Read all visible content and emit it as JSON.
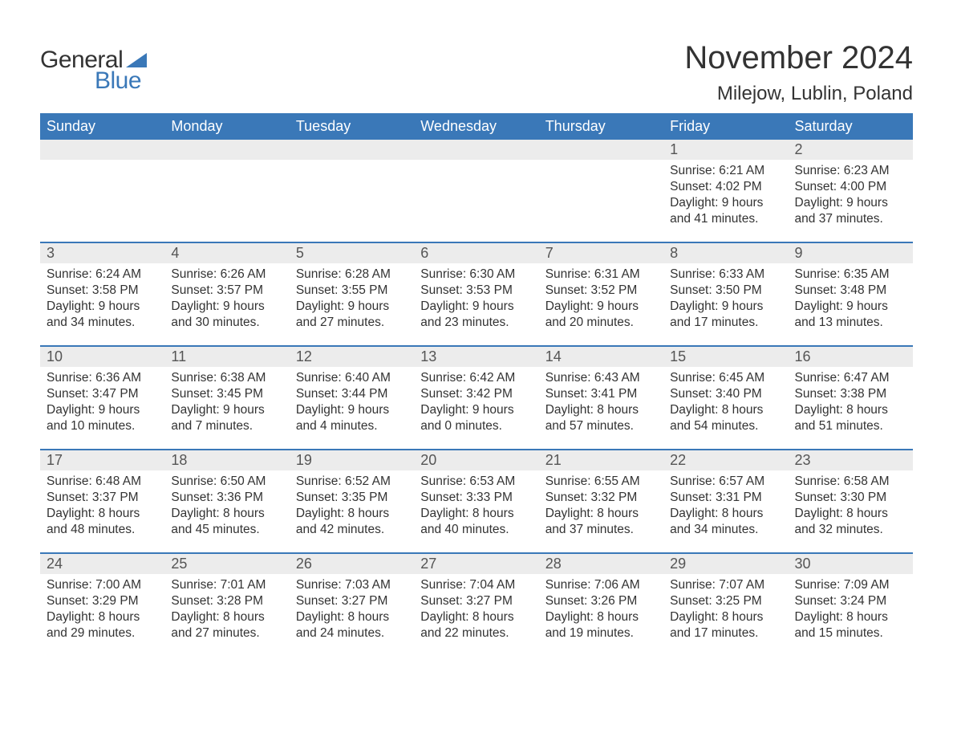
{
  "logo": {
    "text_general": "General",
    "text_blue": "Blue",
    "general_color": "#333333",
    "blue_color": "#3a78b8",
    "sail_color": "#3a78b8"
  },
  "header": {
    "title": "November 2024",
    "location": "Milejow, Lublin, Poland",
    "title_fontsize": 40,
    "location_fontsize": 24,
    "text_color": "#333333"
  },
  "calendar": {
    "type": "table",
    "header_bg": "#3a78b8",
    "header_text_color": "#ffffff",
    "daynum_bg": "#ececec",
    "row_separator_color": "#3a78b8",
    "body_text_color": "#333333",
    "columns": [
      "Sunday",
      "Monday",
      "Tuesday",
      "Wednesday",
      "Thursday",
      "Friday",
      "Saturday"
    ],
    "weeks": [
      [
        null,
        null,
        null,
        null,
        null,
        {
          "day": "1",
          "sunrise": "Sunrise: 6:21 AM",
          "sunset": "Sunset: 4:02 PM",
          "d1": "Daylight: 9 hours",
          "d2": "and 41 minutes."
        },
        {
          "day": "2",
          "sunrise": "Sunrise: 6:23 AM",
          "sunset": "Sunset: 4:00 PM",
          "d1": "Daylight: 9 hours",
          "d2": "and 37 minutes."
        }
      ],
      [
        {
          "day": "3",
          "sunrise": "Sunrise: 6:24 AM",
          "sunset": "Sunset: 3:58 PM",
          "d1": "Daylight: 9 hours",
          "d2": "and 34 minutes."
        },
        {
          "day": "4",
          "sunrise": "Sunrise: 6:26 AM",
          "sunset": "Sunset: 3:57 PM",
          "d1": "Daylight: 9 hours",
          "d2": "and 30 minutes."
        },
        {
          "day": "5",
          "sunrise": "Sunrise: 6:28 AM",
          "sunset": "Sunset: 3:55 PM",
          "d1": "Daylight: 9 hours",
          "d2": "and 27 minutes."
        },
        {
          "day": "6",
          "sunrise": "Sunrise: 6:30 AM",
          "sunset": "Sunset: 3:53 PM",
          "d1": "Daylight: 9 hours",
          "d2": "and 23 minutes."
        },
        {
          "day": "7",
          "sunrise": "Sunrise: 6:31 AM",
          "sunset": "Sunset: 3:52 PM",
          "d1": "Daylight: 9 hours",
          "d2": "and 20 minutes."
        },
        {
          "day": "8",
          "sunrise": "Sunrise: 6:33 AM",
          "sunset": "Sunset: 3:50 PM",
          "d1": "Daylight: 9 hours",
          "d2": "and 17 minutes."
        },
        {
          "day": "9",
          "sunrise": "Sunrise: 6:35 AM",
          "sunset": "Sunset: 3:48 PM",
          "d1": "Daylight: 9 hours",
          "d2": "and 13 minutes."
        }
      ],
      [
        {
          "day": "10",
          "sunrise": "Sunrise: 6:36 AM",
          "sunset": "Sunset: 3:47 PM",
          "d1": "Daylight: 9 hours",
          "d2": "and 10 minutes."
        },
        {
          "day": "11",
          "sunrise": "Sunrise: 6:38 AM",
          "sunset": "Sunset: 3:45 PM",
          "d1": "Daylight: 9 hours",
          "d2": "and 7 minutes."
        },
        {
          "day": "12",
          "sunrise": "Sunrise: 6:40 AM",
          "sunset": "Sunset: 3:44 PM",
          "d1": "Daylight: 9 hours",
          "d2": "and 4 minutes."
        },
        {
          "day": "13",
          "sunrise": "Sunrise: 6:42 AM",
          "sunset": "Sunset: 3:42 PM",
          "d1": "Daylight: 9 hours",
          "d2": "and 0 minutes."
        },
        {
          "day": "14",
          "sunrise": "Sunrise: 6:43 AM",
          "sunset": "Sunset: 3:41 PM",
          "d1": "Daylight: 8 hours",
          "d2": "and 57 minutes."
        },
        {
          "day": "15",
          "sunrise": "Sunrise: 6:45 AM",
          "sunset": "Sunset: 3:40 PM",
          "d1": "Daylight: 8 hours",
          "d2": "and 54 minutes."
        },
        {
          "day": "16",
          "sunrise": "Sunrise: 6:47 AM",
          "sunset": "Sunset: 3:38 PM",
          "d1": "Daylight: 8 hours",
          "d2": "and 51 minutes."
        }
      ],
      [
        {
          "day": "17",
          "sunrise": "Sunrise: 6:48 AM",
          "sunset": "Sunset: 3:37 PM",
          "d1": "Daylight: 8 hours",
          "d2": "and 48 minutes."
        },
        {
          "day": "18",
          "sunrise": "Sunrise: 6:50 AM",
          "sunset": "Sunset: 3:36 PM",
          "d1": "Daylight: 8 hours",
          "d2": "and 45 minutes."
        },
        {
          "day": "19",
          "sunrise": "Sunrise: 6:52 AM",
          "sunset": "Sunset: 3:35 PM",
          "d1": "Daylight: 8 hours",
          "d2": "and 42 minutes."
        },
        {
          "day": "20",
          "sunrise": "Sunrise: 6:53 AM",
          "sunset": "Sunset: 3:33 PM",
          "d1": "Daylight: 8 hours",
          "d2": "and 40 minutes."
        },
        {
          "day": "21",
          "sunrise": "Sunrise: 6:55 AM",
          "sunset": "Sunset: 3:32 PM",
          "d1": "Daylight: 8 hours",
          "d2": "and 37 minutes."
        },
        {
          "day": "22",
          "sunrise": "Sunrise: 6:57 AM",
          "sunset": "Sunset: 3:31 PM",
          "d1": "Daylight: 8 hours",
          "d2": "and 34 minutes."
        },
        {
          "day": "23",
          "sunrise": "Sunrise: 6:58 AM",
          "sunset": "Sunset: 3:30 PM",
          "d1": "Daylight: 8 hours",
          "d2": "and 32 minutes."
        }
      ],
      [
        {
          "day": "24",
          "sunrise": "Sunrise: 7:00 AM",
          "sunset": "Sunset: 3:29 PM",
          "d1": "Daylight: 8 hours",
          "d2": "and 29 minutes."
        },
        {
          "day": "25",
          "sunrise": "Sunrise: 7:01 AM",
          "sunset": "Sunset: 3:28 PM",
          "d1": "Daylight: 8 hours",
          "d2": "and 27 minutes."
        },
        {
          "day": "26",
          "sunrise": "Sunrise: 7:03 AM",
          "sunset": "Sunset: 3:27 PM",
          "d1": "Daylight: 8 hours",
          "d2": "and 24 minutes."
        },
        {
          "day": "27",
          "sunrise": "Sunrise: 7:04 AM",
          "sunset": "Sunset: 3:27 PM",
          "d1": "Daylight: 8 hours",
          "d2": "and 22 minutes."
        },
        {
          "day": "28",
          "sunrise": "Sunrise: 7:06 AM",
          "sunset": "Sunset: 3:26 PM",
          "d1": "Daylight: 8 hours",
          "d2": "and 19 minutes."
        },
        {
          "day": "29",
          "sunrise": "Sunrise: 7:07 AM",
          "sunset": "Sunset: 3:25 PM",
          "d1": "Daylight: 8 hours",
          "d2": "and 17 minutes."
        },
        {
          "day": "30",
          "sunrise": "Sunrise: 7:09 AM",
          "sunset": "Sunset: 3:24 PM",
          "d1": "Daylight: 8 hours",
          "d2": "and 15 minutes."
        }
      ]
    ]
  }
}
